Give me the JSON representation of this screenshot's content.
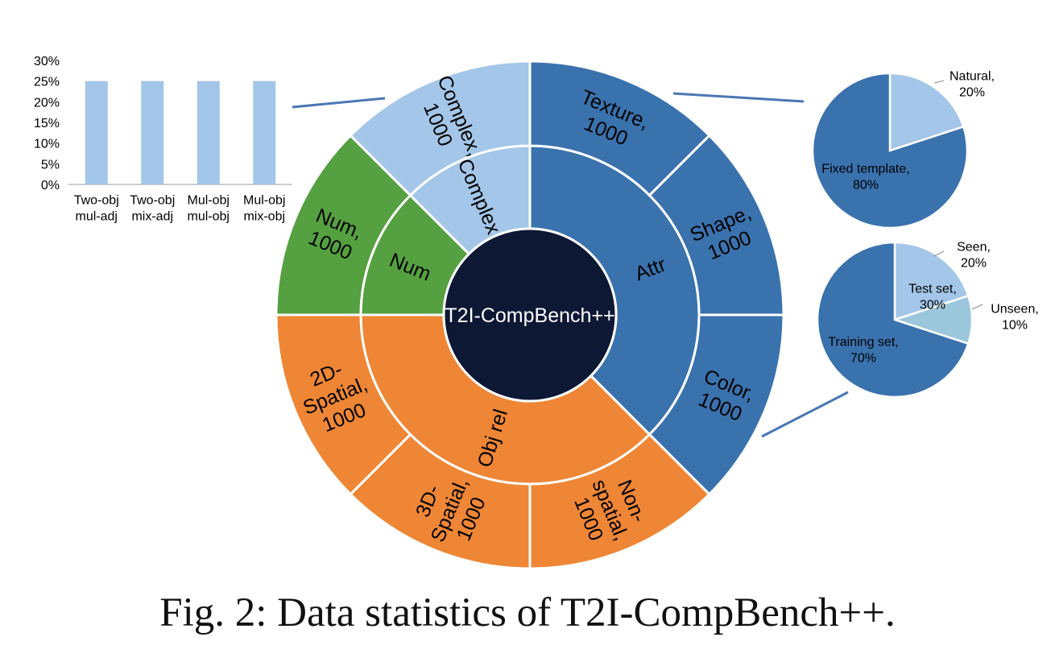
{
  "caption": "Fig. 2: Data statistics of T2I-CompBench++.",
  "colors": {
    "attr": "#3a72ae",
    "complex": "#a4c6e8",
    "num": "#55a040",
    "objrel": "#ee8635",
    "center": "#0c1834",
    "unseen": "#9cc6dc",
    "connector": "#4a77b4"
  },
  "chart_data": [
    {
      "type": "sunburst",
      "title": "T2I-CompBench++",
      "inner": [
        {
          "name": "Attr",
          "value": 3000,
          "color": "#3a72ae"
        },
        {
          "name": "Obj rel",
          "value": 3000,
          "color": "#ee8635"
        },
        {
          "name": "Num",
          "value": 1000,
          "color": "#55a040"
        },
        {
          "name": "Complex",
          "value": 1000,
          "color": "#a4c6e8"
        }
      ],
      "outer": [
        {
          "parent": "Attr",
          "lines": [
            "Texture,",
            "1000"
          ],
          "value": 1000
        },
        {
          "parent": "Attr",
          "lines": [
            "Shape,",
            "1000"
          ],
          "value": 1000
        },
        {
          "parent": "Attr",
          "lines": [
            "Color,",
            "1000"
          ],
          "value": 1000
        },
        {
          "parent": "Obj rel",
          "lines": [
            "Non-",
            "spatial,",
            "1000"
          ],
          "value": 1000
        },
        {
          "parent": "Obj rel",
          "lines": [
            "3D-",
            "Spatial,",
            "1000"
          ],
          "value": 1000
        },
        {
          "parent": "Obj rel",
          "lines": [
            "2D-",
            "Spatial,",
            "1000"
          ],
          "value": 1000
        },
        {
          "parent": "Num",
          "lines": [
            "Num,",
            "1000"
          ],
          "value": 1000
        },
        {
          "parent": "Complex",
          "lines": [
            "Complex,",
            "1000"
          ],
          "value": 1000
        }
      ]
    },
    {
      "type": "bar",
      "categories": [
        [
          "Two-obj",
          "mul-adj"
        ],
        [
          "Two-obj",
          "mix-adj"
        ],
        [
          "Mul-obj",
          "mul-obj"
        ],
        [
          "Mul-obj",
          "mix-obj"
        ]
      ],
      "values": [
        25,
        25,
        25,
        25
      ],
      "ylim": [
        0,
        30
      ],
      "yticks": [
        "0%",
        "5%",
        "10%",
        "15%",
        "20%",
        "25%",
        "30%"
      ],
      "color": "#a4c6e8"
    },
    {
      "type": "pie",
      "slices": [
        {
          "lines": [
            "Natural,",
            "20%"
          ],
          "value": 20,
          "color": "#a4c6e8"
        },
        {
          "lines": [
            "Fixed template,",
            "80%"
          ],
          "value": 80,
          "color": "#3a72ae"
        }
      ]
    },
    {
      "type": "pie",
      "slices": [
        {
          "lines": [
            "Seen,",
            "20%"
          ],
          "value": 20,
          "color": "#a4c6e8"
        },
        {
          "lines": [
            "Unseen,",
            "10%"
          ],
          "value": 10,
          "color": "#9cc6dc"
        },
        {
          "lines": [
            "Training set,",
            "70%"
          ],
          "value": 70,
          "color": "#3a72ae"
        }
      ],
      "group_label": [
        "Test set,",
        "30%"
      ]
    }
  ]
}
